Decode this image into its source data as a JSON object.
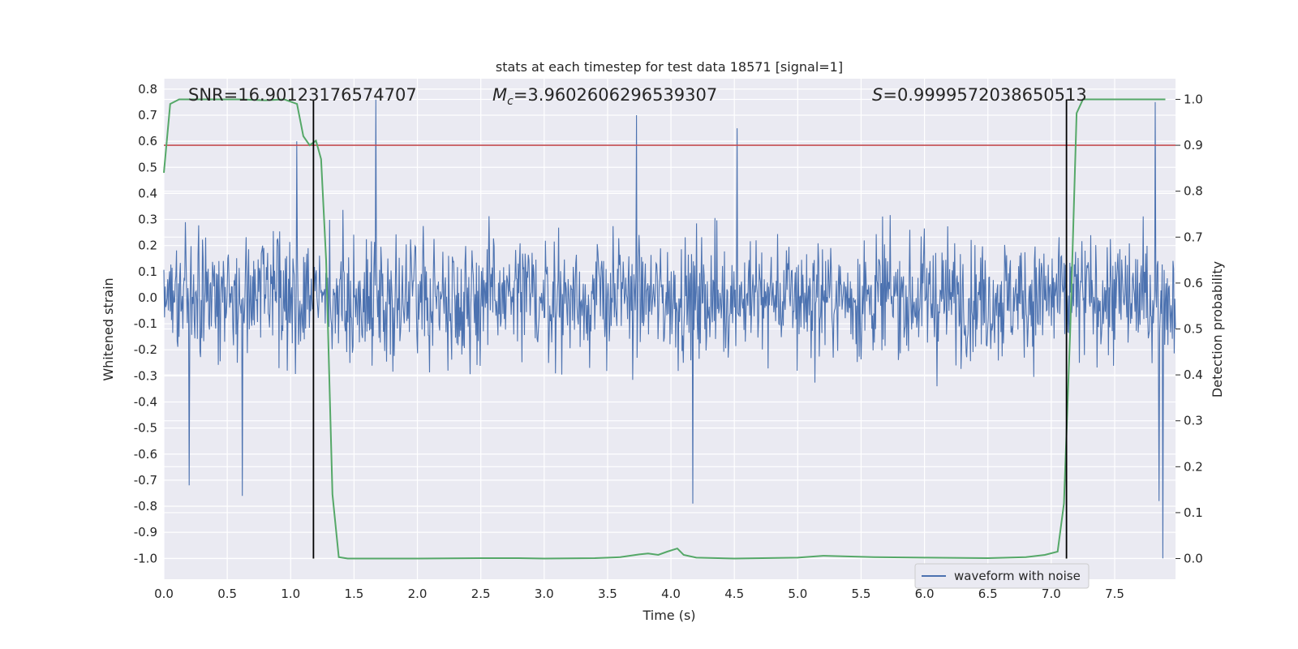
{
  "chart_data": {
    "type": "line",
    "title": "stats at each timestep for test data 18571 [signal=1]",
    "xlabel": "Time (s)",
    "ylabel_left": "Whitened strain",
    "ylabel_right": "Detection probability",
    "xlim": [
      0.0,
      7.98
    ],
    "ylim_left": [
      -1.08,
      0.84
    ],
    "ylim_right": [
      -0.045,
      1.045
    ],
    "x_ticks": [
      "0.0",
      "0.5",
      "1.0",
      "1.5",
      "2.0",
      "2.5",
      "3.0",
      "3.5",
      "4.0",
      "4.5",
      "5.0",
      "5.5",
      "6.0",
      "6.5",
      "7.0",
      "7.5"
    ],
    "x_tick_values": [
      0.0,
      0.5,
      1.0,
      1.5,
      2.0,
      2.5,
      3.0,
      3.5,
      4.0,
      4.5,
      5.0,
      5.5,
      6.0,
      6.5,
      7.0,
      7.5
    ],
    "y_left_ticks": [
      "0.8",
      "0.7",
      "0.6",
      "0.5",
      "0.4",
      "0.3",
      "0.2",
      "0.1",
      "0.0",
      "-0.1",
      "-0.2",
      "-0.3",
      "-0.4",
      "-0.5",
      "-0.6",
      "-0.7",
      "-0.8",
      "-0.9",
      "-1.0"
    ],
    "y_left_tick_values": [
      0.8,
      0.7,
      0.6,
      0.5,
      0.4,
      0.3,
      0.2,
      0.1,
      0.0,
      -0.1,
      -0.2,
      -0.3,
      -0.4,
      -0.5,
      -0.6,
      -0.7,
      -0.8,
      -0.9,
      -1.0
    ],
    "y_right_ticks": [
      "1.0",
      "0.9",
      "0.8",
      "0.7",
      "0.6",
      "0.5",
      "0.4",
      "0.3",
      "0.2",
      "0.1",
      "0.0"
    ],
    "y_right_tick_values": [
      1.0,
      0.9,
      0.8,
      0.7,
      0.6,
      0.5,
      0.4,
      0.3,
      0.2,
      0.1,
      0.0
    ],
    "annotations": {
      "snr": "SNR=16.90123176574707",
      "mc_symbol": "M",
      "mc_subscript": "c",
      "mc_value": "=3.9602606296539307",
      "s_symbol": "S",
      "s_value": "=0.9999572038650513"
    },
    "threshold_right": 0.9,
    "vlines_x": [
      1.18,
      7.12
    ],
    "legend": {
      "label": "waveform with noise",
      "position": "lower-right"
    },
    "series": [
      {
        "name": "waveform with noise",
        "axis": "left",
        "color": "#4c72b0",
        "description": "whitened strain time series, samples in [-1.0, 0.76]",
        "envelope_upper_typical": 0.4,
        "envelope_lower_typical": -0.45,
        "peaks": [
          [
            1.67,
            0.76
          ],
          [
            7.82,
            0.75
          ],
          [
            1.05,
            0.6
          ],
          [
            4.52,
            0.65
          ],
          [
            3.73,
            0.7
          ]
        ],
        "troughs": [
          [
            0.2,
            -0.72
          ],
          [
            0.62,
            -0.76
          ],
          [
            4.17,
            -0.79
          ],
          [
            7.88,
            -1.0
          ],
          [
            7.85,
            -0.78
          ]
        ]
      },
      {
        "name": "detection probability",
        "axis": "right",
        "color": "#55a868",
        "x": [
          0.0,
          0.05,
          0.12,
          0.3,
          0.6,
          0.8,
          0.95,
          1.05,
          1.1,
          1.15,
          1.2,
          1.24,
          1.28,
          1.33,
          1.38,
          1.45,
          1.6,
          2.0,
          2.5,
          2.8,
          3.0,
          3.4,
          3.6,
          3.75,
          3.82,
          3.9,
          3.97,
          4.05,
          4.1,
          4.2,
          4.5,
          5.0,
          5.2,
          5.6,
          6.0,
          6.5,
          6.8,
          6.95,
          7.05,
          7.1,
          7.15,
          7.2,
          7.25,
          7.3,
          7.5,
          7.9
        ],
        "y": [
          0.84,
          0.99,
          1.0,
          1.0,
          1.0,
          0.998,
          1.0,
          0.99,
          0.92,
          0.9,
          0.91,
          0.87,
          0.65,
          0.14,
          0.003,
          0.0,
          0.0,
          0.0,
          0.001,
          0.001,
          0.0,
          0.001,
          0.003,
          0.009,
          0.011,
          0.008,
          0.015,
          0.022,
          0.008,
          0.002,
          0.0,
          0.002,
          0.006,
          0.003,
          0.002,
          0.001,
          0.003,
          0.008,
          0.015,
          0.12,
          0.5,
          0.97,
          1.0,
          1.0,
          1.0,
          1.0
        ]
      },
      {
        "name": "threshold",
        "axis": "right",
        "color": "#c44e52",
        "y_constant": 0.9
      }
    ]
  }
}
